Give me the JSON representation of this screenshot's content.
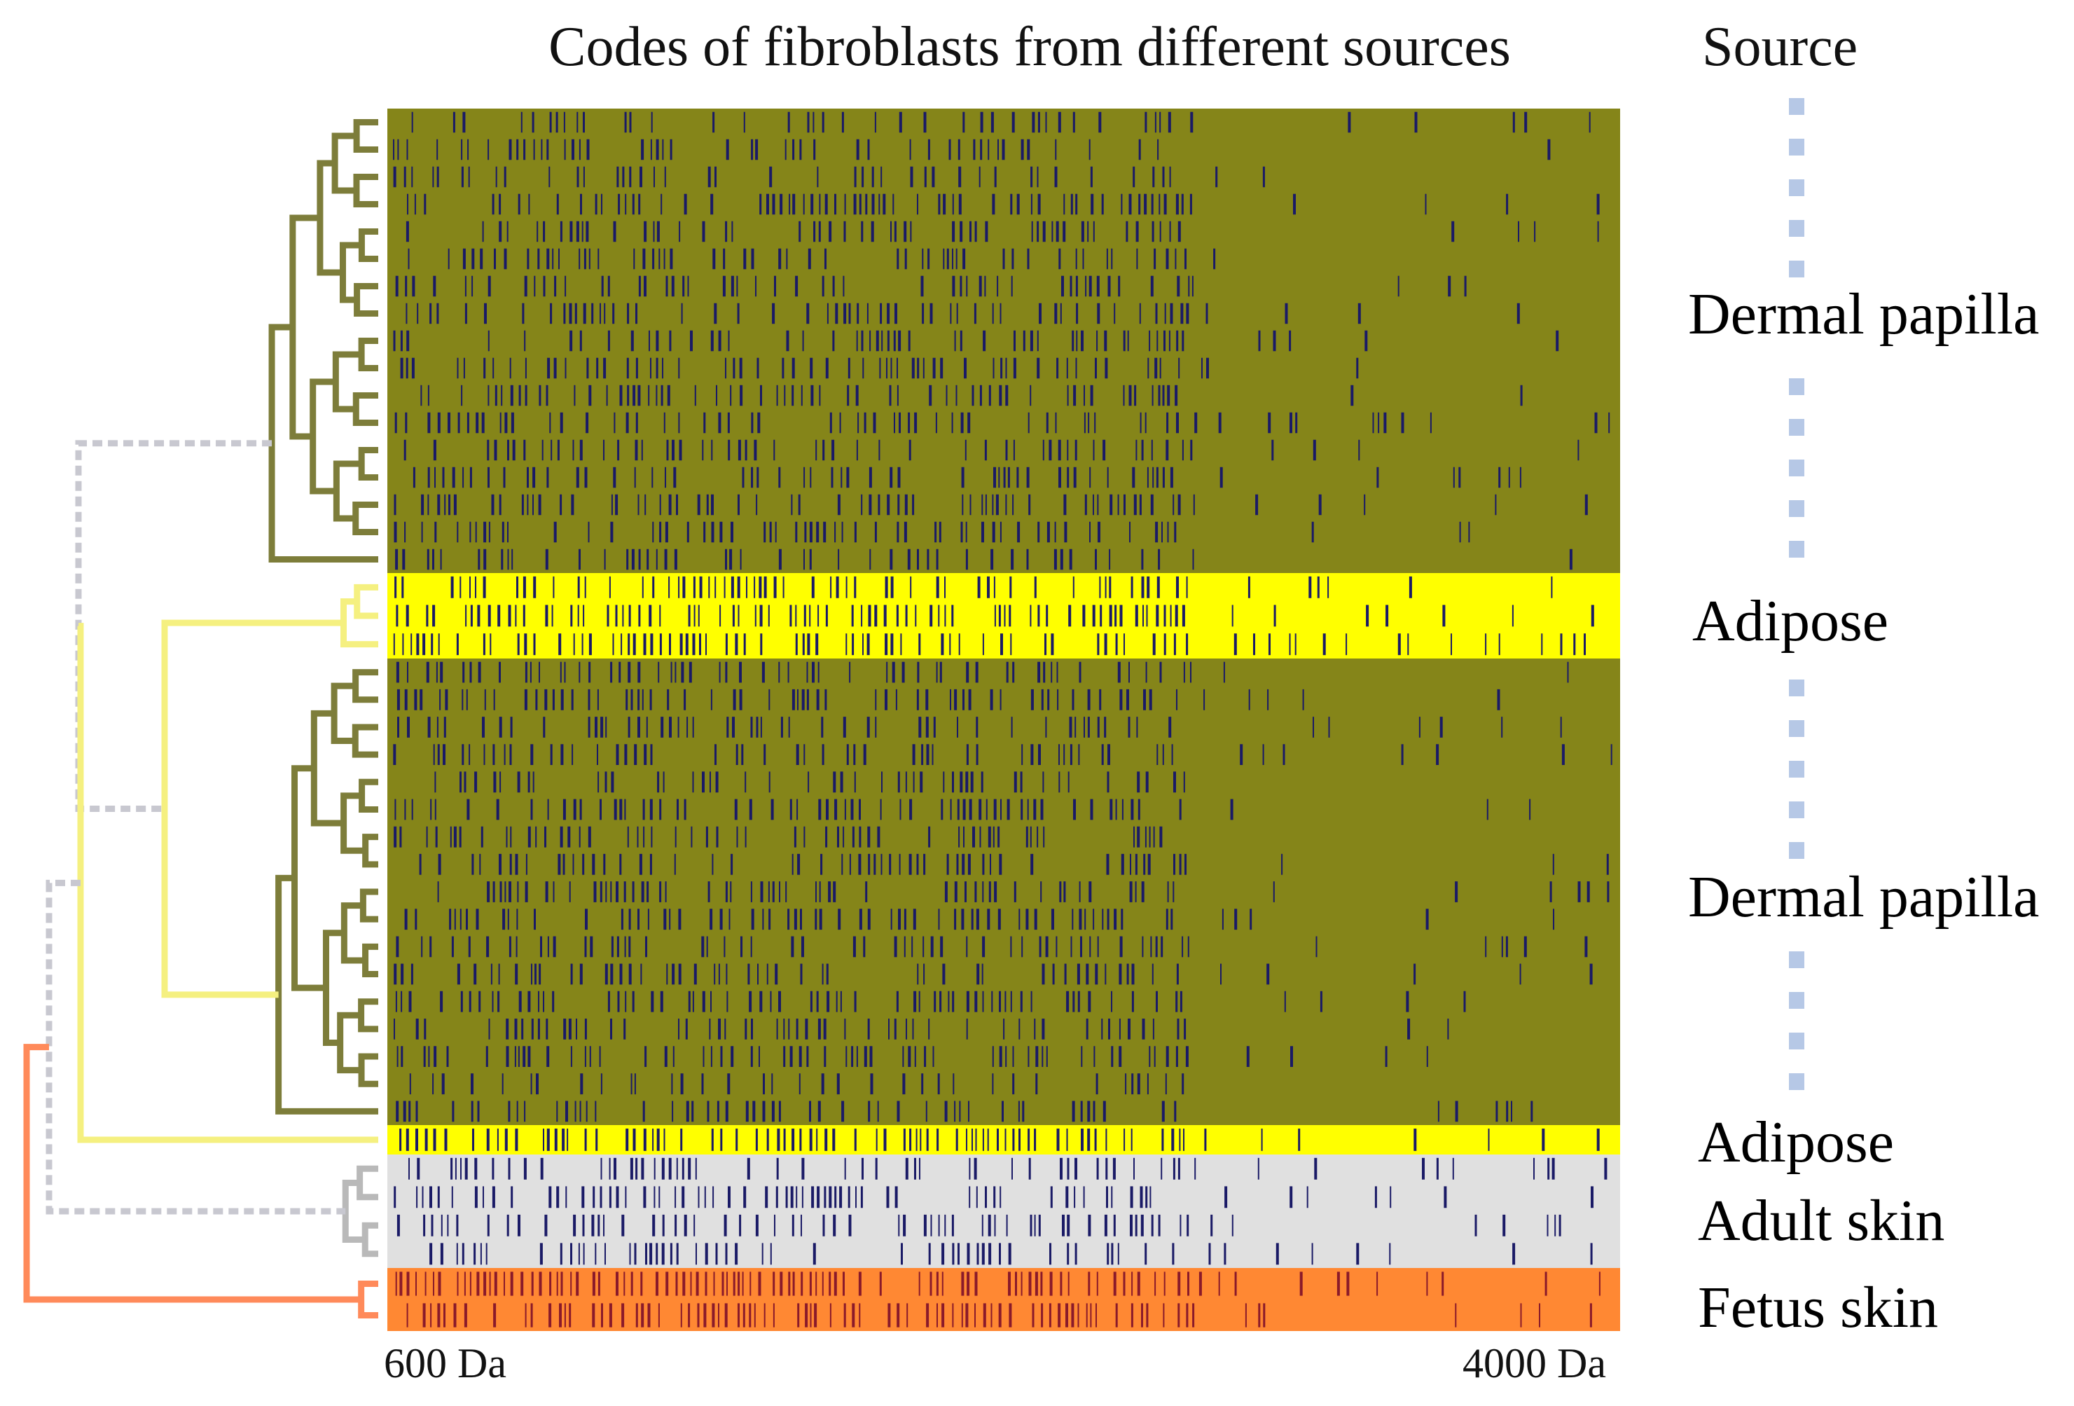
{
  "chart_data": {
    "type": "heatmap",
    "title": "Codes of fibroblasts from different sources",
    "legend_title": "Source",
    "xaxis": {
      "min_label": "600  Da",
      "max_label": "4000 Da",
      "min": 600,
      "max": 4000,
      "unit": "Da"
    },
    "colors": {
      "Dermal papilla": "#858519",
      "Adipose": "#ffff00",
      "Adult skin": "#e0e0e0",
      "Fetus skin": "#ff8833",
      "peak": "#1a1a66",
      "peak_on_fetus": "#8a1a2a",
      "legend_dash": "#b6c8e6",
      "dendro_dermal": "#7d7d3a",
      "dendro_adipose": "#f5f080",
      "dendro_adult": "#b9b9b9",
      "dendro_fetus": "#ff8a5a",
      "dendro_root": "#c8c8d0"
    },
    "groups": [
      {
        "name": "Dermal papilla",
        "rows": 17,
        "label_color": "#7d7d1a"
      },
      {
        "name": "Adipose",
        "rows": 3,
        "label_color": "#f5d23c"
      },
      {
        "name": "Dermal papilla",
        "rows": 17,
        "label_color": "#7d7d1a"
      },
      {
        "name": "Adipose",
        "rows": 1,
        "label_color": "#f5d23c"
      },
      {
        "name": "Adult skin",
        "rows": 4,
        "label_color": "#b040a0"
      },
      {
        "name": "Fetus skin",
        "rows": 2,
        "label_color": "#ff8833"
      }
    ]
  }
}
